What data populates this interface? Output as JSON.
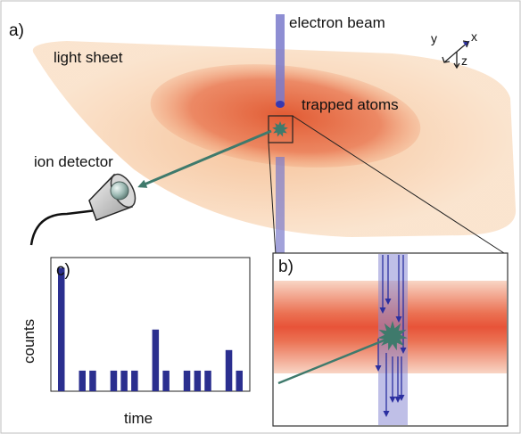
{
  "labels": {
    "panel_a": "a)",
    "panel_b": "b)",
    "panel_c": "c)",
    "light_sheet": "light sheet",
    "electron_beam": "electron beam",
    "trapped_atoms": "trapped atoms",
    "ion_detector": "ion detector"
  },
  "axes_glyph": {
    "x": "x",
    "y": "y",
    "z": "z"
  },
  "colors": {
    "beam": "#6f6fc8",
    "sheet_outer": "#f2a26a",
    "sheet_core": "#e0552e",
    "ion": "#3f7a6c",
    "bars": "#2b2f8f",
    "arrows": "#2b2fa0"
  },
  "chart_data": {
    "type": "bar",
    "xlabel": "time",
    "ylabel": "counts",
    "x": [
      1,
      3,
      4,
      6,
      7,
      8,
      10,
      11,
      13,
      14,
      15,
      17,
      18
    ],
    "values": [
      6,
      1,
      1,
      1,
      1,
      1,
      3,
      1,
      1,
      1,
      1,
      2,
      1
    ],
    "xlim": [
      0,
      19
    ],
    "ylim": [
      0,
      6.5
    ],
    "grid": false
  }
}
